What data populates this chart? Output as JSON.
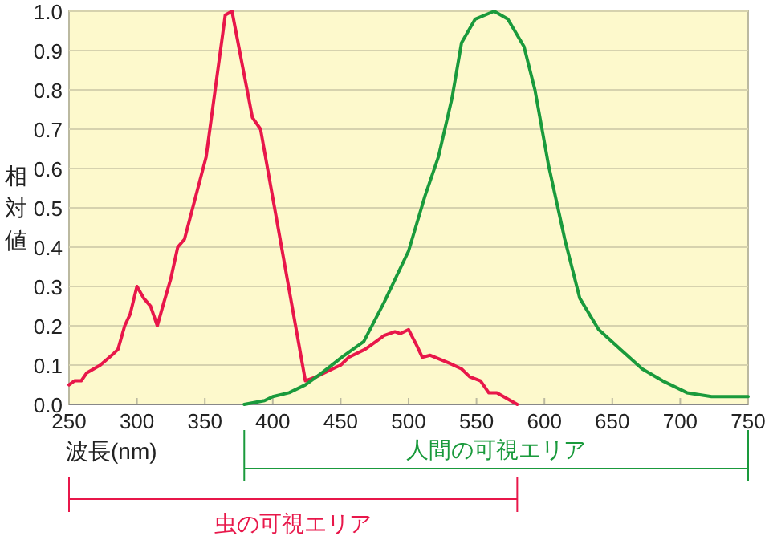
{
  "chart_data": {
    "type": "line",
    "xlabel": "波長(nm)",
    "ylabel": "相対値",
    "xlim": [
      250,
      750
    ],
    "xticks": [
      250,
      300,
      350,
      400,
      450,
      500,
      550,
      600,
      650,
      700,
      750
    ],
    "ylim": [
      0,
      1
    ],
    "yticks": [
      {
        "value": 0,
        "label": "0.0"
      },
      0.1,
      0.2,
      0.3,
      0.4,
      0.5,
      0.6,
      0.7,
      0.8,
      0.9,
      {
        "value": 1,
        "label": "1.0"
      }
    ],
    "grid": "y",
    "marker": "none",
    "line_style": "solid",
    "series": [
      {
        "color": "#e8174a",
        "x": [
          250,
          254,
          259,
          263,
          273,
          283,
          286,
          291,
          295,
          300,
          305,
          310,
          315,
          319,
          325,
          330,
          335,
          351,
          365,
          370,
          385,
          391,
          424,
          432,
          438,
          444,
          450,
          456,
          468,
          476,
          482,
          490,
          494,
          500,
          506,
          510,
          516,
          530,
          539,
          545,
          553,
          559,
          565,
          580
        ],
        "values": [
          0.05,
          0.06,
          0.06,
          0.08,
          0.1,
          0.13,
          0.14,
          0.2,
          0.23,
          0.3,
          0.27,
          0.25,
          0.2,
          0.25,
          0.32,
          0.4,
          0.42,
          0.63,
          0.99,
          1.0,
          0.73,
          0.7,
          0.06,
          0.07,
          0.08,
          0.09,
          0.1,
          0.12,
          0.14,
          0.16,
          0.175,
          0.185,
          0.18,
          0.19,
          0.15,
          0.12,
          0.125,
          0.105,
          0.09,
          0.07,
          0.06,
          0.03,
          0.03,
          0.0
        ]
      },
      {
        "color": "#1a9a3c",
        "x": [
          379,
          394,
          400,
          412,
          424,
          436,
          451,
          467,
          482,
          500,
          512,
          522,
          532,
          539,
          549,
          563,
          573,
          585,
          593,
          603,
          615,
          626,
          640,
          656,
          672,
          687,
          705,
          723,
          750
        ],
        "values": [
          0.0,
          0.01,
          0.02,
          0.03,
          0.05,
          0.08,
          0.12,
          0.16,
          0.26,
          0.39,
          0.53,
          0.63,
          0.78,
          0.92,
          0.98,
          1.0,
          0.98,
          0.91,
          0.8,
          0.61,
          0.42,
          0.27,
          0.19,
          0.14,
          0.09,
          0.06,
          0.03,
          0.02,
          0.02
        ]
      }
    ],
    "annotations": [
      "虫の可視エリア",
      "人間の可視エリア"
    ]
  }
}
